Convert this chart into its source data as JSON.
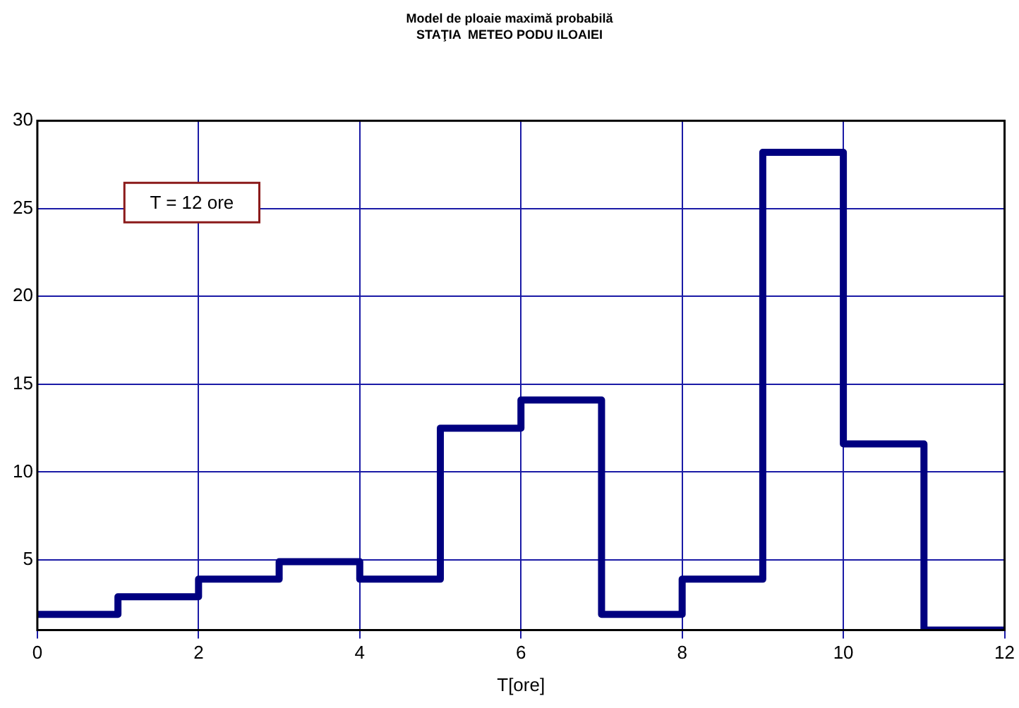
{
  "chart_data": {
    "type": "step",
    "title": "Model de ploaie maximă probabilă",
    "subtitle": "STAŢIA  METEO PODU ILOAIEI",
    "xlabel": "T[ore]",
    "annotations": [
      "T = 12 ore"
    ],
    "x": [
      0,
      1,
      2,
      3,
      4,
      5,
      6,
      7,
      8,
      9,
      10,
      11,
      12
    ],
    "series": [
      {
        "color": "#000080",
        "values": [
          1.9,
          2.9,
          3.9,
          4.9,
          3.9,
          12.5,
          14.1,
          1.9,
          3.9,
          28.2,
          11.6,
          1,
          1
        ]
      }
    ],
    "xlim": [
      0,
      12
    ],
    "xticks": [
      0,
      2,
      4,
      6,
      8,
      10,
      12
    ],
    "ylim": [
      1,
      30
    ],
    "yticks": [
      5,
      10,
      15,
      20,
      25,
      30
    ],
    "grid": true,
    "legend": false,
    "marker": "none",
    "line_style": "solid"
  }
}
